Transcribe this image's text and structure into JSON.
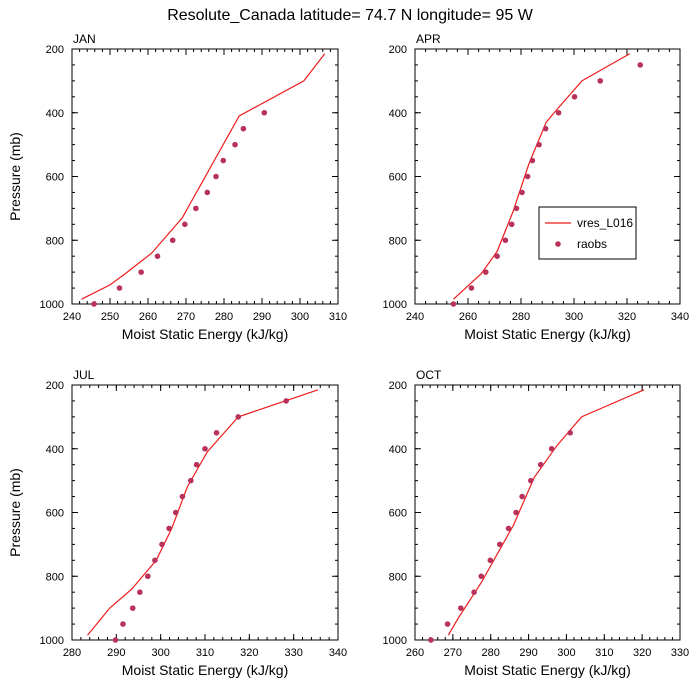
{
  "title": "Resolute_Canada  latitude= 74.7 N longitude= 95 W",
  "colors": {
    "model": "#ee1c1c",
    "obs": "#b8325a"
  },
  "legend": {
    "model_label": "vres_L016",
    "obs_label": "raobs",
    "panel": 1
  },
  "chart_data": [
    {
      "type": "line",
      "panel_label": "JAN",
      "xlabel": "Moist Static Energy (kJ/kg)",
      "ylabel": "Pressure (mb)",
      "xlim": [
        240,
        310
      ],
      "ylim": [
        1000,
        200
      ],
      "xticks": [
        240,
        250,
        260,
        270,
        280,
        290,
        300,
        310
      ],
      "yticks": [
        200,
        400,
        600,
        800,
        1000
      ],
      "grid": false,
      "series": [
        {
          "name": "vres_L016",
          "kind": "line",
          "x": [
            242.5,
            250,
            254,
            261,
            269,
            284,
            301,
            306.5
          ],
          "y": [
            985,
            940,
            905,
            840,
            730,
            410,
            300,
            215
          ]
        },
        {
          "name": "raobs",
          "kind": "markers",
          "x": [
            245.8,
            252.5,
            258.2,
            262.5,
            266.5,
            269.7,
            272.6,
            275.6,
            277.9,
            279.8,
            282.9,
            285.1,
            290.6
          ],
          "y": [
            1000,
            950,
            900,
            850,
            800,
            750,
            700,
            650,
            600,
            550,
            500,
            450,
            400
          ]
        }
      ]
    },
    {
      "type": "line",
      "panel_label": "APR",
      "xlabel": "Moist Static Energy (kJ/kg)",
      "ylabel": "",
      "xlim": [
        240,
        340
      ],
      "ylim": [
        1000,
        200
      ],
      "xticks": [
        240,
        260,
        280,
        300,
        320,
        340
      ],
      "yticks": [
        200,
        400,
        600,
        800,
        1000
      ],
      "grid": false,
      "series": [
        {
          "name": "vres_L016",
          "kind": "line",
          "x": [
            254.5,
            265,
            271,
            277,
            283,
            289.5,
            292.5,
            303,
            321
          ],
          "y": [
            985,
            905,
            835,
            710,
            560,
            430,
            400,
            300,
            215
          ]
        },
        {
          "name": "raobs",
          "kind": "markers",
          "x": [
            254.5,
            261.3,
            266.7,
            271.0,
            274.1,
            276.5,
            278.3,
            280.4,
            282.5,
            284.3,
            286.8,
            289.3,
            294.2,
            300.2,
            309.9,
            325.0
          ],
          "y": [
            1000,
            950,
            900,
            850,
            800,
            750,
            700,
            650,
            600,
            550,
            500,
            450,
            400,
            350,
            300,
            250
          ]
        }
      ]
    },
    {
      "type": "line",
      "panel_label": "JUL",
      "xlabel": "Moist Static Energy (kJ/kg)",
      "ylabel": "Pressure (mb)",
      "xlim": [
        280,
        340
      ],
      "ylim": [
        1000,
        200
      ],
      "xticks": [
        280,
        290,
        300,
        310,
        320,
        330,
        340
      ],
      "yticks": [
        200,
        400,
        600,
        800,
        1000
      ],
      "grid": false,
      "series": [
        {
          "name": "vres_L016",
          "kind": "line",
          "x": [
            283.5,
            288.5,
            293.5,
            299,
            302.5,
            306,
            310.5,
            317.5,
            335.5
          ],
          "y": [
            985,
            900,
            840,
            750,
            650,
            520,
            410,
            300,
            215
          ]
        },
        {
          "name": "raobs",
          "kind": "markers",
          "x": [
            289.8,
            291.5,
            293.7,
            295.3,
            297.1,
            298.7,
            300.3,
            301.9,
            303.4,
            304.9,
            306.8,
            308.1,
            310.0,
            312.6,
            317.5,
            328.3
          ],
          "y": [
            1000,
            950,
            900,
            850,
            800,
            750,
            700,
            650,
            600,
            550,
            500,
            450,
            400,
            350,
            300,
            250
          ]
        }
      ]
    },
    {
      "type": "line",
      "panel_label": "OCT",
      "xlabel": "Moist Static Energy (kJ/kg)",
      "ylabel": "",
      "xlim": [
        260,
        330
      ],
      "ylim": [
        1000,
        200
      ],
      "xticks": [
        260,
        270,
        280,
        290,
        300,
        310,
        320,
        330
      ],
      "yticks": [
        200,
        400,
        600,
        800,
        1000
      ],
      "grid": false,
      "series": [
        {
          "name": "vres_L016",
          "kind": "line",
          "x": [
            268.8,
            271.5,
            277.5,
            286,
            291.5,
            297.5,
            304,
            320.5
          ],
          "y": [
            985,
            930,
            820,
            640,
            490,
            390,
            300,
            215
          ]
        },
        {
          "name": "raobs",
          "kind": "markers",
          "x": [
            264.2,
            268.6,
            272.1,
            275.6,
            277.5,
            279.9,
            282.4,
            284.7,
            286.7,
            288.3,
            290.6,
            293.2,
            296.1,
            301.0
          ],
          "y": [
            1000,
            950,
            900,
            850,
            800,
            750,
            700,
            650,
            600,
            550,
            500,
            450,
            400,
            350
          ]
        }
      ]
    }
  ]
}
